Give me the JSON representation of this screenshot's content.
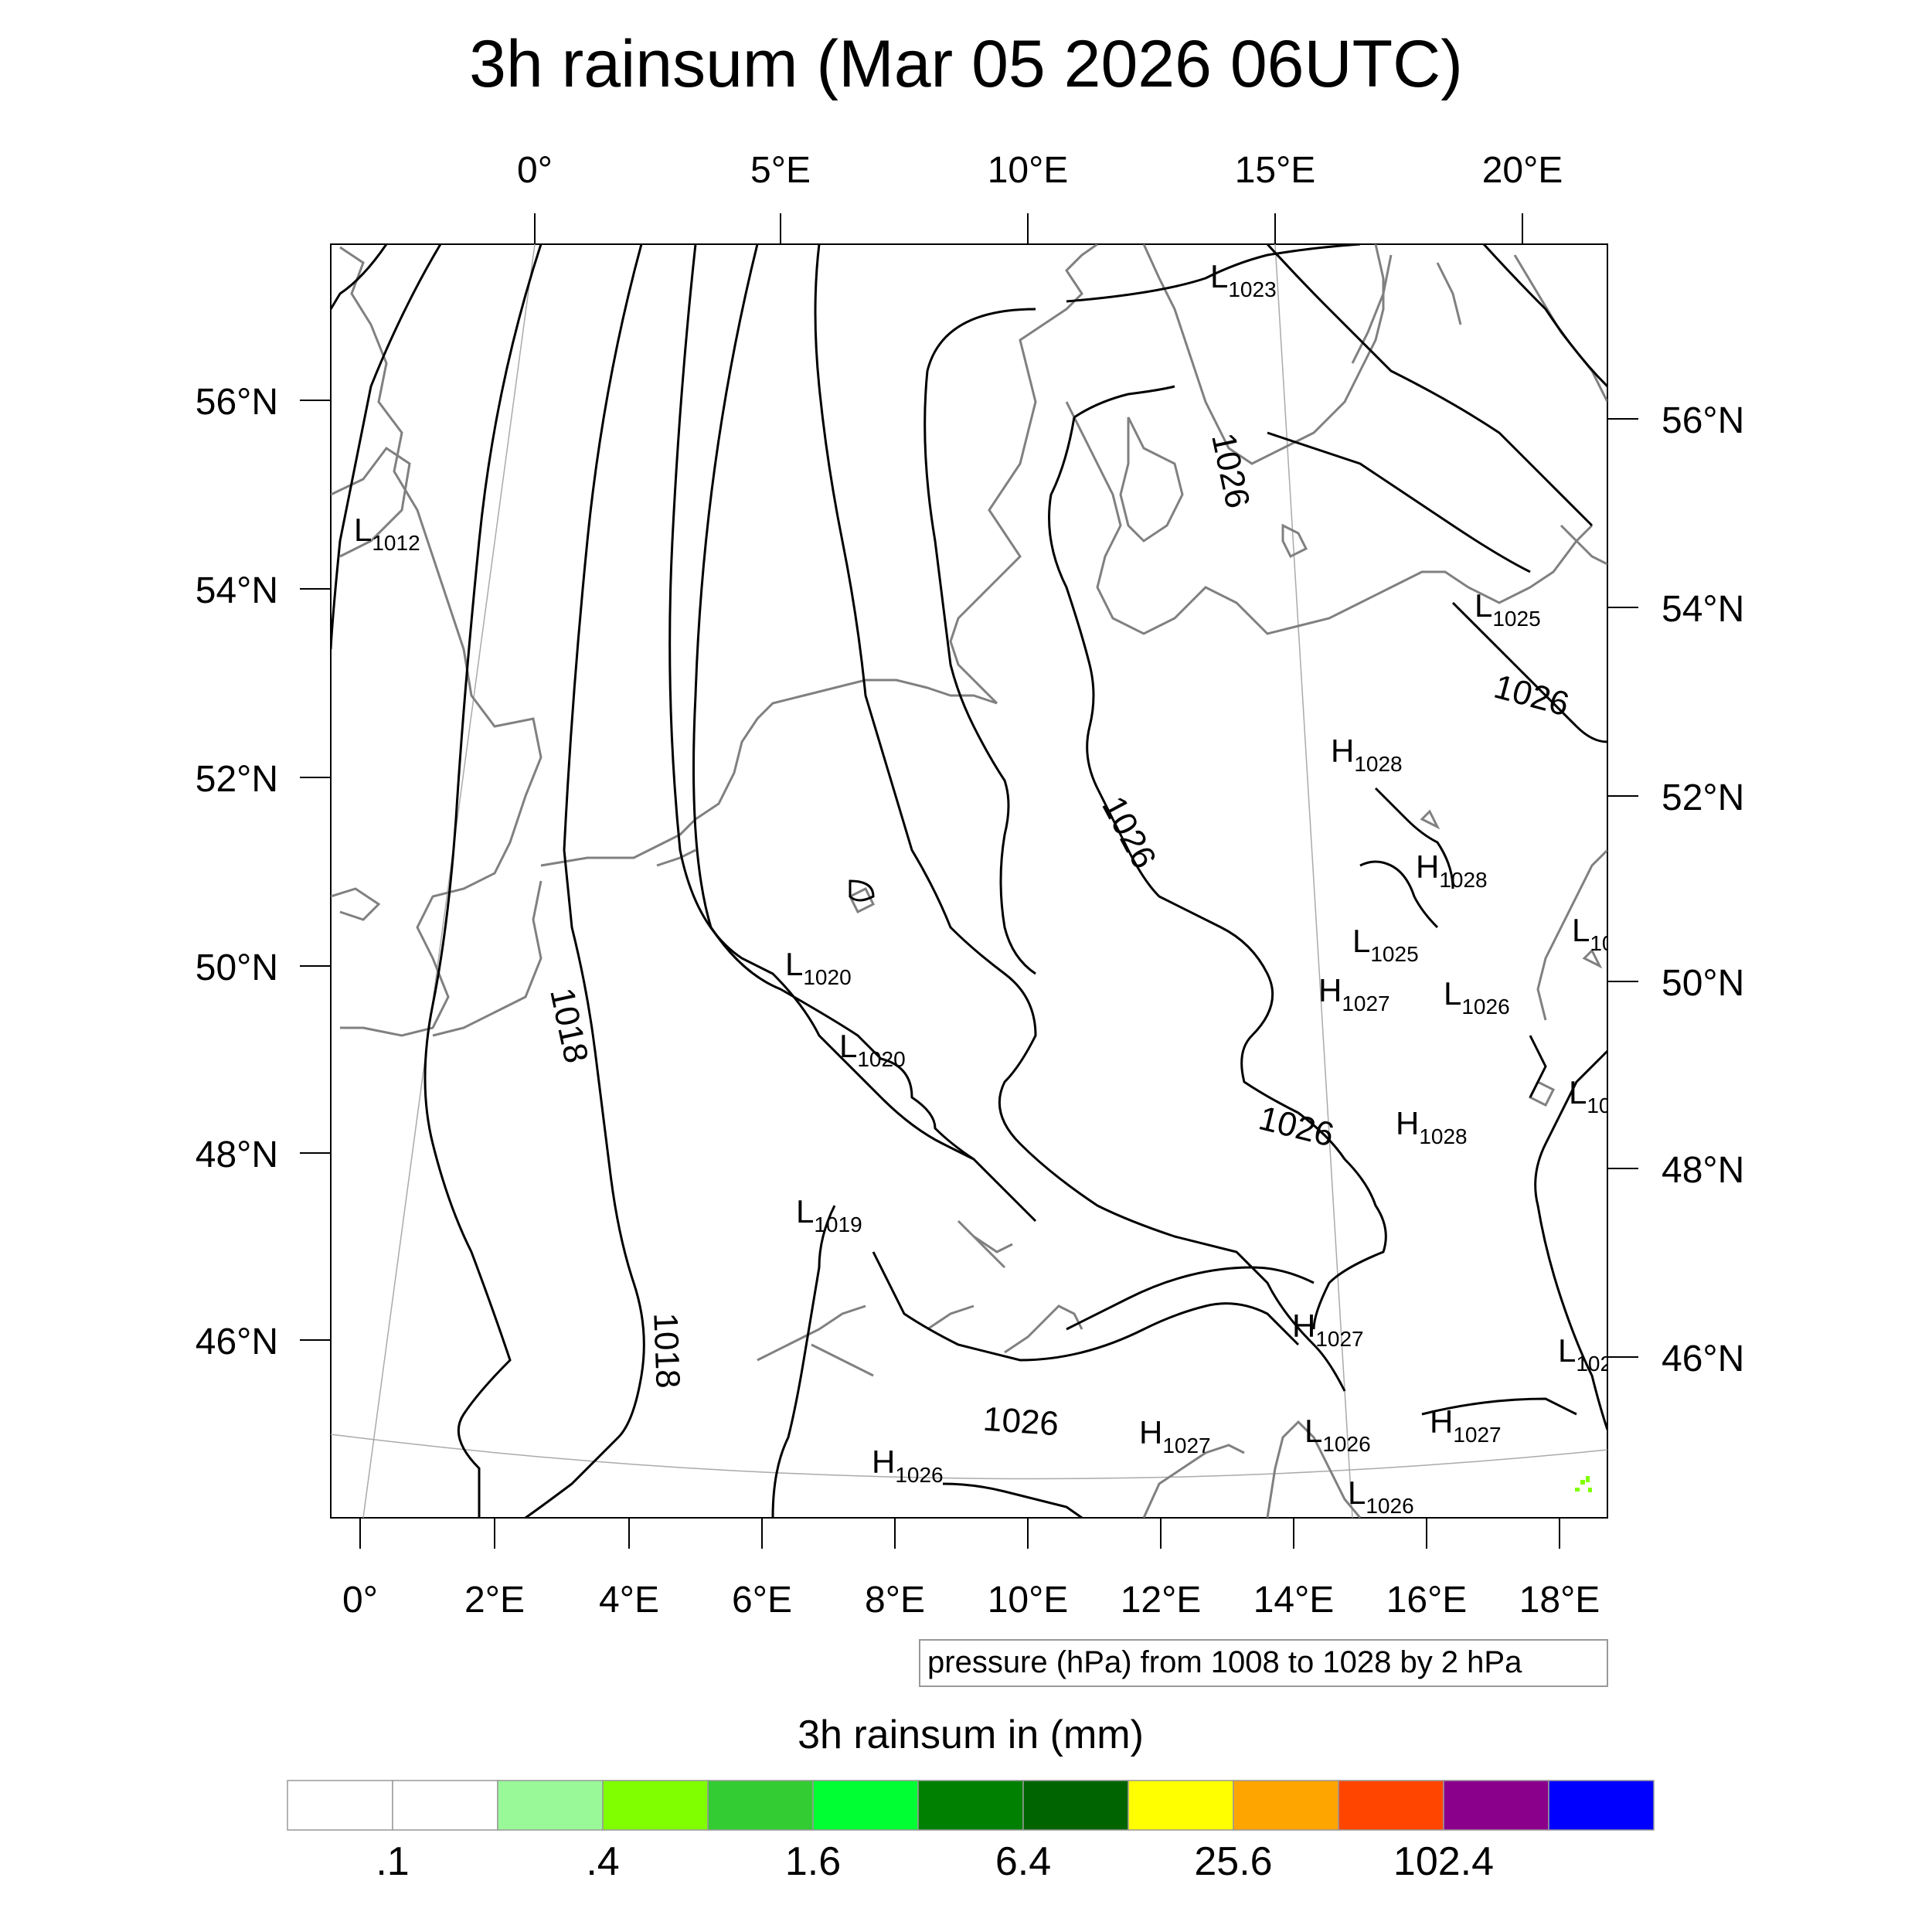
{
  "title": "3h rainsum (Mar 05 2026 06UTC)",
  "top_lon_labels": [
    "0°",
    "5°E",
    "10°E",
    "15°E",
    "20°E"
  ],
  "bottom_lon_labels": [
    "0°",
    "2°E",
    "4°E",
    "6°E",
    "8°E",
    "10°E",
    "12°E",
    "14°E",
    "16°E",
    "18°E"
  ],
  "left_lat_labels": [
    "56°N",
    "54°N",
    "52°N",
    "50°N",
    "48°N",
    "46°N"
  ],
  "right_lat_labels": [
    "56°N",
    "54°N",
    "52°N",
    "50°N",
    "48°N",
    "46°N"
  ],
  "pressure_note": "pressure (hPa) from 1008 to 1028 by 2 hPa",
  "contour_labels": [
    "1026",
    "1026",
    "1026",
    "1026",
    "1026",
    "1018",
    "1018"
  ],
  "pressure_centers": [
    {
      "type": "L",
      "value": "1023"
    },
    {
      "type": "L",
      "value": "1012"
    },
    {
      "type": "L",
      "value": "1025"
    },
    {
      "type": "H",
      "value": "1028"
    },
    {
      "type": "H",
      "value": "1028"
    },
    {
      "type": "L",
      "value": "1025"
    },
    {
      "type": "H",
      "value": "1027"
    },
    {
      "type": "L",
      "value": "1026"
    },
    {
      "type": "L",
      "value": "1020"
    },
    {
      "type": "L",
      "value": "1020"
    },
    {
      "type": "H",
      "value": "1028"
    },
    {
      "type": "L",
      "value": "1019"
    },
    {
      "type": "H",
      "value": "1027"
    },
    {
      "type": "H",
      "value": "1026"
    },
    {
      "type": "H",
      "value": "1027"
    },
    {
      "type": "L",
      "value": "1026"
    },
    {
      "type": "H",
      "value": "1027"
    },
    {
      "type": "L",
      "value": "1026"
    },
    {
      "type": "L",
      "value": "10"
    },
    {
      "type": "L",
      "value": "10"
    },
    {
      "type": "L",
      "value": "102"
    }
  ],
  "colorbar": {
    "title": "3h rainsum in (mm)",
    "colors": [
      "#ffffff",
      "#ffffff",
      "#99f999",
      "#80ff00",
      "#33cc33",
      "#00ff33",
      "#008000",
      "#006400",
      "#ffff00",
      "#ffa500",
      "#ff4500",
      "#8b008b",
      "#0000ff"
    ],
    "tick_labels": [
      ".1",
      ".4",
      "1.6",
      "6.4",
      "25.6",
      "102.4"
    ]
  },
  "styles": {
    "coast_color": "#808080",
    "isobar_color": "#000000",
    "grid_color": "#aaaaaa"
  }
}
